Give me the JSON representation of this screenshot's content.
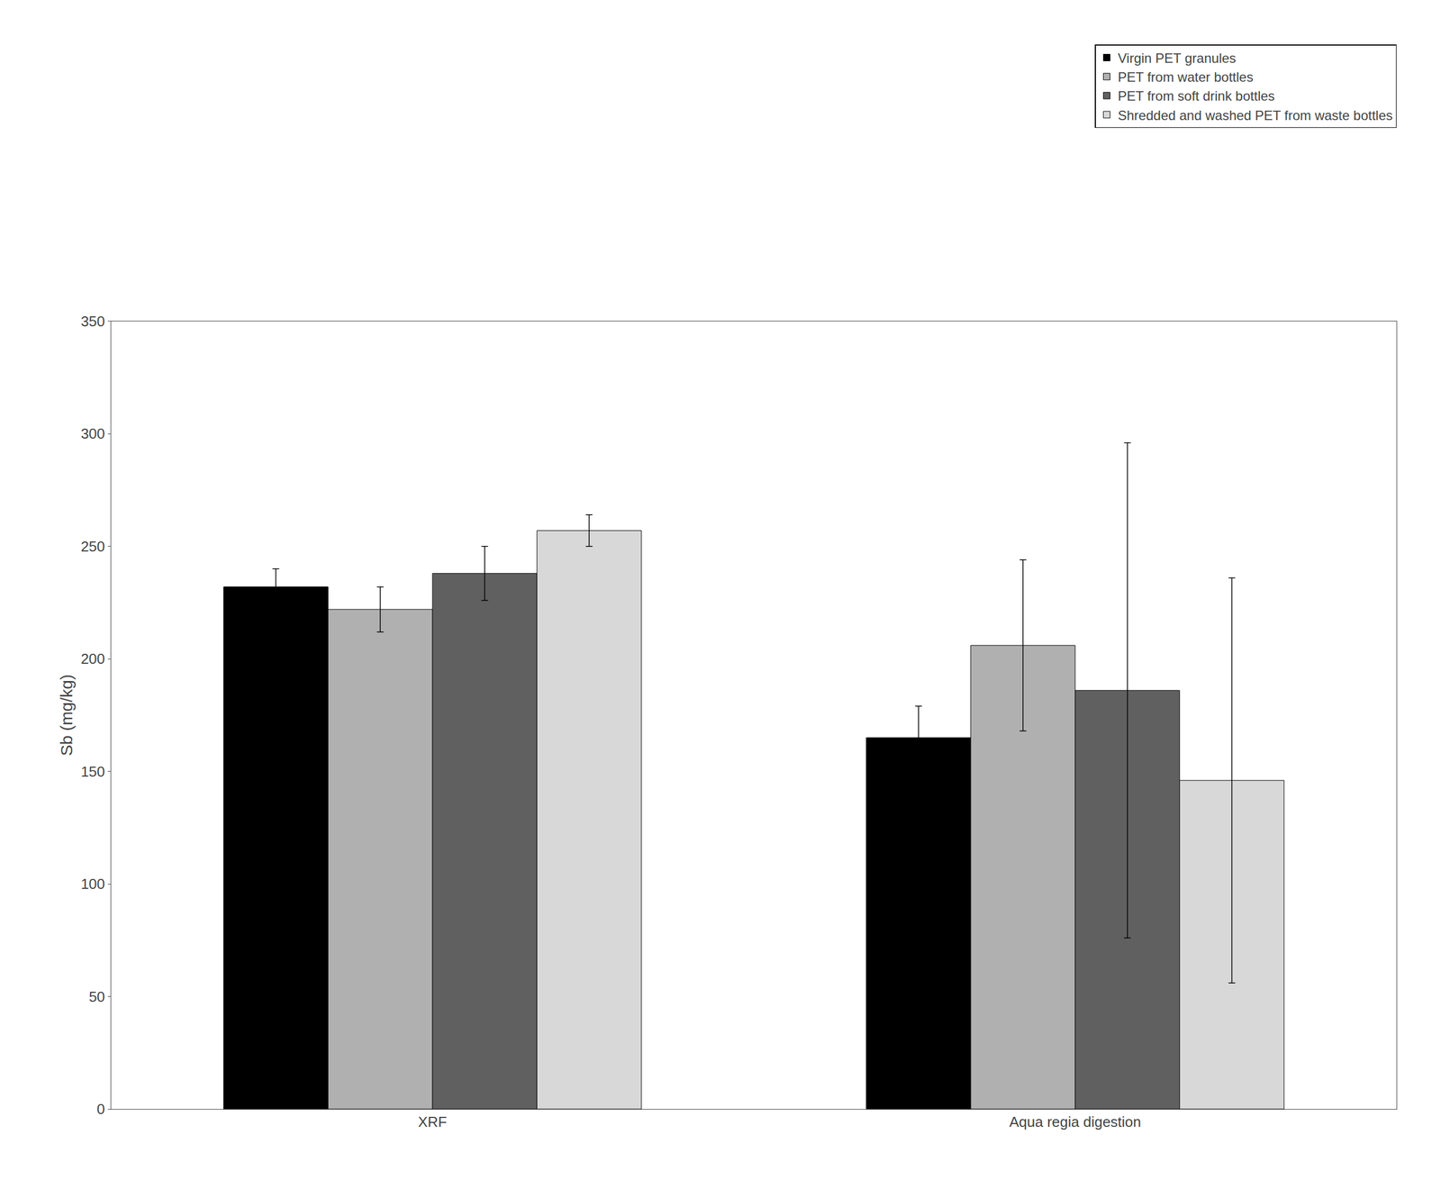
{
  "chart_data": {
    "type": "bar",
    "categories": [
      "XRF",
      "Aqua regia digestion"
    ],
    "series": [
      {
        "name": "Virgin PET granules",
        "color": "#000000",
        "values": [
          232,
          165
        ],
        "errors": [
          8,
          14
        ]
      },
      {
        "name": "PET from water bottles",
        "color": "#b0b0b0",
        "values": [
          222,
          206
        ],
        "errors": [
          10,
          38
        ]
      },
      {
        "name": "PET from soft drink bottles",
        "color": "#606060",
        "values": [
          238,
          186
        ],
        "errors": [
          12,
          110
        ]
      },
      {
        "name": "Shredded and washed PET from waste bottles",
        "color": "#d8d8d8",
        "values": [
          257,
          146
        ],
        "errors": [
          7,
          90
        ]
      }
    ],
    "ylabel": "Sb (mg/kg)",
    "ylim": [
      0,
      350
    ],
    "yticks": [
      0,
      50,
      100,
      150,
      200,
      250,
      300,
      350
    ],
    "grid": false,
    "legend": "upper right"
  }
}
